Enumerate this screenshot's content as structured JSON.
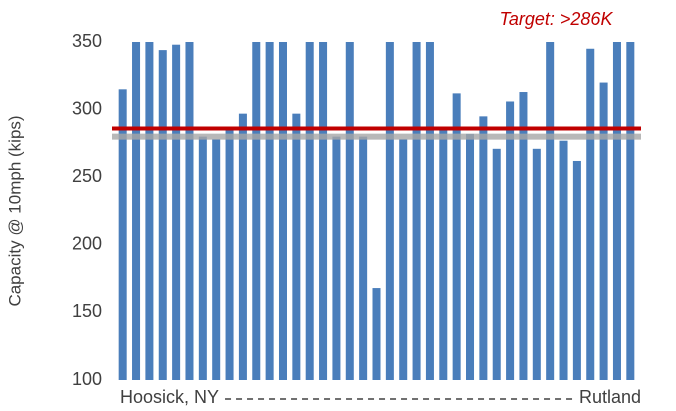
{
  "chart_data": {
    "type": "bar",
    "annotation": "Target: >286K",
    "y_label": "Capacity @ 10mph (kips)",
    "categories": [
      "Hoosick, NY",
      null,
      null,
      null,
      null,
      null,
      null,
      null,
      null,
      null,
      null,
      null,
      null,
      null,
      null,
      null,
      null,
      null,
      null,
      null,
      null,
      null,
      null,
      null,
      null,
      null,
      null,
      null,
      null,
      null,
      null,
      null,
      null,
      null,
      null,
      null,
      null,
      null,
      "Rutland"
    ],
    "values": [
      315,
      350,
      350,
      344,
      348,
      350,
      280,
      278,
      286,
      297,
      350,
      350,
      350,
      297,
      350,
      350,
      280,
      350,
      280,
      168,
      350,
      278,
      350,
      350,
      286,
      312,
      282,
      295,
      271,
      306,
      313,
      271,
      350,
      277,
      262,
      345,
      320,
      350,
      350
    ],
    "color": "#4a7ebb",
    "target": 286,
    "target_color": "#c00000",
    "reference": 280,
    "reference_color": "#a6a6a6",
    "ylim": [
      100,
      350
    ],
    "yticks": [
      100,
      150,
      200,
      250,
      300,
      350
    ]
  }
}
